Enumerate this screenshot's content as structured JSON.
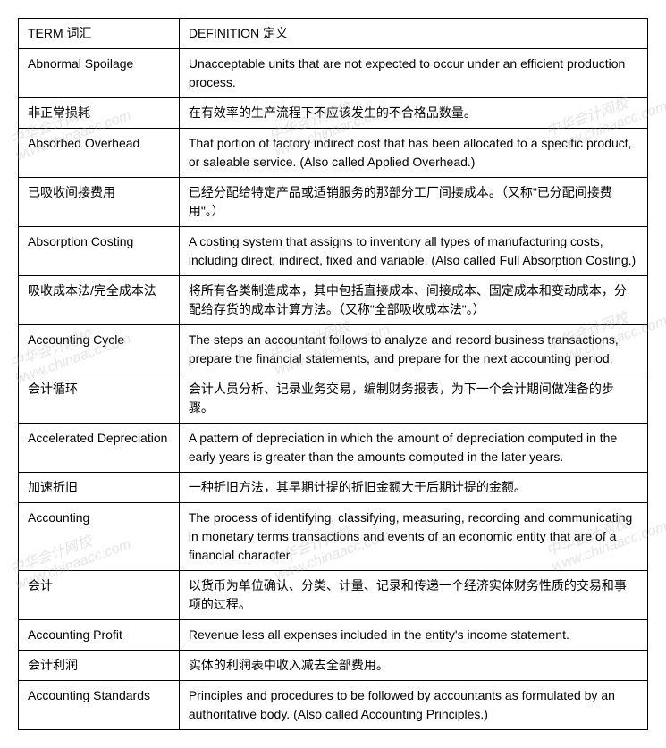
{
  "table": {
    "border_color": "#000000",
    "background_color": "#ffffff",
    "text_color": "#000000",
    "font_size": 14,
    "term_col_width": 180,
    "def_col_width": 525,
    "header": {
      "term": "TERM 词汇",
      "definition": "DEFINITION 定义"
    },
    "rows": [
      {
        "term": "Abnormal Spoilage",
        "definition": "Unacceptable units that are not expected to occur under an efficient production process."
      },
      {
        "term": "非正常损耗",
        "definition": "在有效率的生产流程下不应该发生的不合格品数量。"
      },
      {
        "term": "Absorbed Overhead",
        "definition": "That portion of factory indirect cost that has been allocated to a specific product, or saleable service.  (Also called Applied Overhead.)"
      },
      {
        "term": "已吸收间接费用",
        "definition": "已经分配给特定产品或适销服务的那部分工厂间接成本。（又称\"已分配间接费用\"。）"
      },
      {
        "term": "Absorption Costing",
        "definition": "A costing system that assigns to inventory all types of manufacturing costs, including direct, indirect, fixed and variable. (Also called Full Absorption Costing.)"
      },
      {
        "term": "吸收成本法/完全成本法",
        "definition": "将所有各类制造成本，其中包括直接成本、间接成本、固定成本和变动成本，分配给存货的成本计算方法。（又称\"全部吸收成本法\"。）"
      },
      {
        "term": "Accounting Cycle",
        "definition": "The steps an accountant follows to analyze and record business transactions, prepare the financial statements, and prepare for the next accounting period."
      },
      {
        "term": "会计循环",
        "definition": "会计人员分析、记录业务交易，编制财务报表，为下一个会计期间做准备的步骤。"
      },
      {
        "term": "Accelerated Depreciation",
        "definition": "A pattern of depreciation in which the amount of depreciation computed in the early years is greater than the amounts computed in the later years."
      },
      {
        "term": "加速折旧",
        "definition": "一种折旧方法，其早期计提的折旧金额大于后期计提的金额。"
      },
      {
        "term": "Accounting",
        "definition": "The process of identifying, classifying, measuring, recording and communicating in monetary terms transactions and events of an economic entity that are of a financial character."
      },
      {
        "term": "会计",
        "definition": "以货币为单位确认、分类、计量、记录和传递一个经济实体财务性质的交易和事项的过程。"
      },
      {
        "term": "Accounting Profit",
        "definition": "Revenue less all expenses included in the entity's income statement."
      },
      {
        "term": "会计利润",
        "definition": "实体的利润表中收入减去全部费用。"
      },
      {
        "term": "Accounting Standards",
        "definition": "Principles and procedures to be followed by accountants as formulated by an authoritative body.  (Also called Accounting Principles.)"
      }
    ]
  },
  "watermarks": {
    "text_cn": "中华会计网校",
    "text_en": "www.chinaacc.com",
    "color": "rgba(180, 180, 180, 0.35)"
  }
}
